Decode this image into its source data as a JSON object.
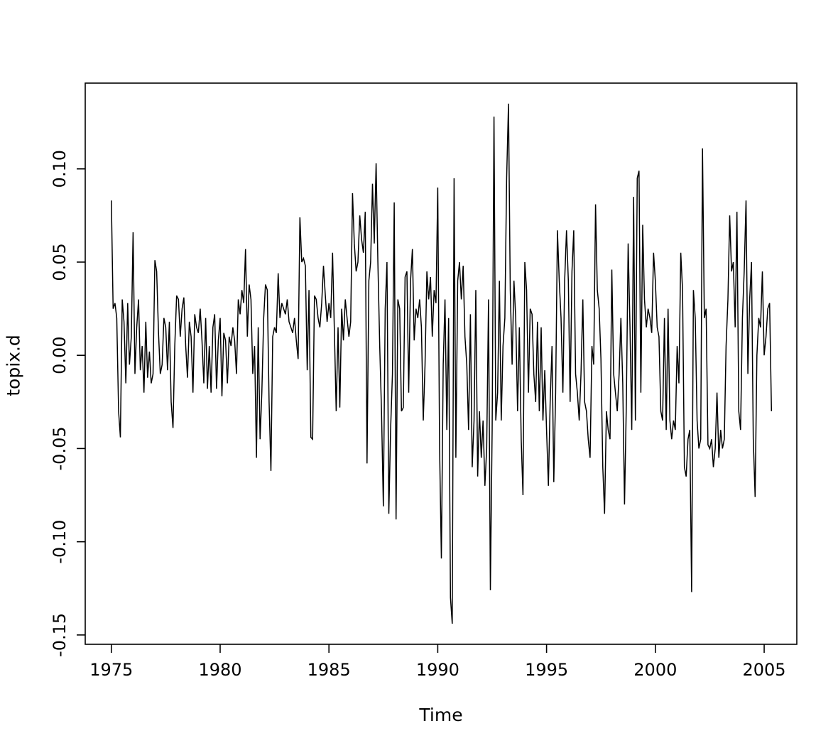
{
  "chart_data": {
    "type": "line",
    "title": "",
    "xlabel": "Time",
    "ylabel": "topix.d",
    "line_color": "#000000",
    "background": "#ffffff",
    "grid": false,
    "legend": "none",
    "xlim": [
      1973.8,
      2006.5
    ],
    "ylim": [
      -0.155,
      0.146
    ],
    "x_ticks": [
      1975,
      1980,
      1985,
      1990,
      1995,
      2000,
      2005
    ],
    "x_tick_labels": [
      "1975",
      "1980",
      "1985",
      "1990",
      "1995",
      "2000",
      "2005"
    ],
    "y_ticks": [
      -0.15,
      -0.1,
      -0.05,
      0.0,
      0.05,
      0.1
    ],
    "y_tick_labels": [
      "-0.15",
      "-0.10",
      "-0.05",
      "0.00",
      "0.05",
      "0.10"
    ],
    "x_start": 1975.0,
    "frequency": 12,
    "series_name": "topix.d",
    "values": [
      0.083,
      0.025,
      0.028,
      0.02,
      -0.03,
      -0.044,
      0.03,
      0.018,
      -0.015,
      0.028,
      -0.005,
      0.01,
      0.066,
      -0.01,
      0.015,
      0.03,
      -0.008,
      0.005,
      -0.02,
      0.018,
      -0.012,
      0.002,
      -0.015,
      -0.01,
      0.051,
      0.045,
      0.012,
      -0.01,
      -0.005,
      0.02,
      0.015,
      -0.008,
      0.018,
      -0.025,
      -0.039,
      0.005,
      0.032,
      0.03,
      0.01,
      0.025,
      0.031,
      0.005,
      -0.012,
      0.018,
      0.01,
      -0.02,
      0.022,
      0.015,
      0.012,
      0.025,
      0.008,
      -0.015,
      0.02,
      -0.018,
      0.005,
      -0.02,
      0.015,
      0.022,
      -0.018,
      0.008,
      0.02,
      -0.022,
      0.012,
      0.008,
      -0.015,
      0.01,
      0.005,
      0.015,
      0.008,
      -0.01,
      0.03,
      0.022,
      0.035,
      0.028,
      0.057,
      0.01,
      0.038,
      0.03,
      -0.01,
      0.005,
      -0.055,
      0.015,
      -0.045,
      -0.02,
      0.02,
      0.038,
      0.035,
      -0.025,
      -0.062,
      0.01,
      0.015,
      0.012,
      0.044,
      0.02,
      0.028,
      0.025,
      0.022,
      0.03,
      0.018,
      0.015,
      0.012,
      0.02,
      0.008,
      -0.002,
      0.074,
      0.05,
      0.052,
      0.048,
      -0.008,
      0.035,
      -0.044,
      -0.045,
      0.032,
      0.03,
      0.02,
      0.015,
      0.028,
      0.048,
      0.032,
      0.018,
      0.028,
      0.02,
      0.055,
      0.012,
      -0.03,
      0.015,
      -0.028,
      0.025,
      0.008,
      0.03,
      0.02,
      0.01,
      0.018,
      0.087,
      0.06,
      0.045,
      0.05,
      0.075,
      0.062,
      0.055,
      0.077,
      -0.058,
      0.04,
      0.05,
      0.092,
      0.06,
      0.103,
      0.05,
      0.005,
      -0.03,
      -0.081,
      0.025,
      0.05,
      -0.085,
      -0.04,
      -0.01,
      0.082,
      -0.088,
      0.03,
      0.025,
      -0.03,
      -0.028,
      0.042,
      0.045,
      -0.02,
      0.04,
      0.057,
      0.008,
      0.025,
      0.02,
      0.03,
      0.015,
      -0.035,
      -0.005,
      0.045,
      0.03,
      0.042,
      0.01,
      0.035,
      0.028,
      0.09,
      -0.05,
      -0.109,
      -0.005,
      0.03,
      -0.04,
      0.02,
      -0.13,
      -0.144,
      0.095,
      -0.055,
      0.04,
      0.05,
      0.03,
      0.048,
      0.01,
      -0.005,
      -0.04,
      0.022,
      -0.06,
      -0.035,
      0.035,
      -0.065,
      -0.03,
      -0.055,
      -0.035,
      -0.07,
      -0.05,
      0.03,
      -0.126,
      -0.04,
      0.128,
      -0.035,
      -0.02,
      0.04,
      -0.035,
      0.005,
      0.02,
      0.095,
      0.135,
      0.035,
      -0.005,
      0.04,
      0.02,
      -0.03,
      0.015,
      -0.045,
      -0.075,
      0.05,
      0.035,
      -0.02,
      0.025,
      0.022,
      -0.01,
      -0.025,
      0.018,
      -0.03,
      0.015,
      -0.035,
      -0.008,
      -0.04,
      -0.07,
      -0.025,
      0.005,
      -0.068,
      -0.02,
      0.067,
      0.04,
      0.02,
      -0.02,
      0.04,
      0.067,
      0.04,
      -0.025,
      0.045,
      0.067,
      -0.01,
      -0.02,
      -0.035,
      -0.01,
      0.03,
      -0.025,
      -0.03,
      -0.045,
      -0.055,
      0.005,
      -0.005,
      0.081,
      0.035,
      0.025,
      -0.002,
      -0.06,
      -0.085,
      -0.03,
      -0.04,
      -0.045,
      0.046,
      -0.01,
      -0.02,
      -0.03,
      -0.01,
      0.02,
      -0.015,
      -0.08,
      -0.025,
      0.06,
      0.015,
      -0.04,
      0.085,
      -0.035,
      0.095,
      0.099,
      -0.02,
      0.07,
      0.03,
      0.015,
      0.025,
      0.02,
      0.012,
      0.055,
      0.04,
      0.015,
      0.01,
      -0.03,
      -0.035,
      0.02,
      -0.04,
      0.025,
      -0.035,
      -0.045,
      -0.035,
      -0.04,
      0.005,
      -0.015,
      0.055,
      0.035,
      -0.06,
      -0.065,
      -0.045,
      -0.04,
      -0.127,
      0.035,
      0.02,
      -0.035,
      -0.05,
      -0.045,
      0.111,
      0.02,
      0.025,
      -0.048,
      -0.05,
      -0.045,
      -0.06,
      -0.05,
      -0.02,
      -0.055,
      -0.04,
      -0.05,
      -0.045,
      0.005,
      0.03,
      0.075,
      0.045,
      0.05,
      0.015,
      0.077,
      -0.03,
      -0.04,
      0.02,
      0.045,
      0.083,
      -0.01,
      0.03,
      0.05,
      -0.045,
      -0.076,
      0.0,
      0.02,
      0.015,
      0.045,
      0.0,
      0.01,
      0.025,
      0.028,
      -0.03
    ]
  }
}
